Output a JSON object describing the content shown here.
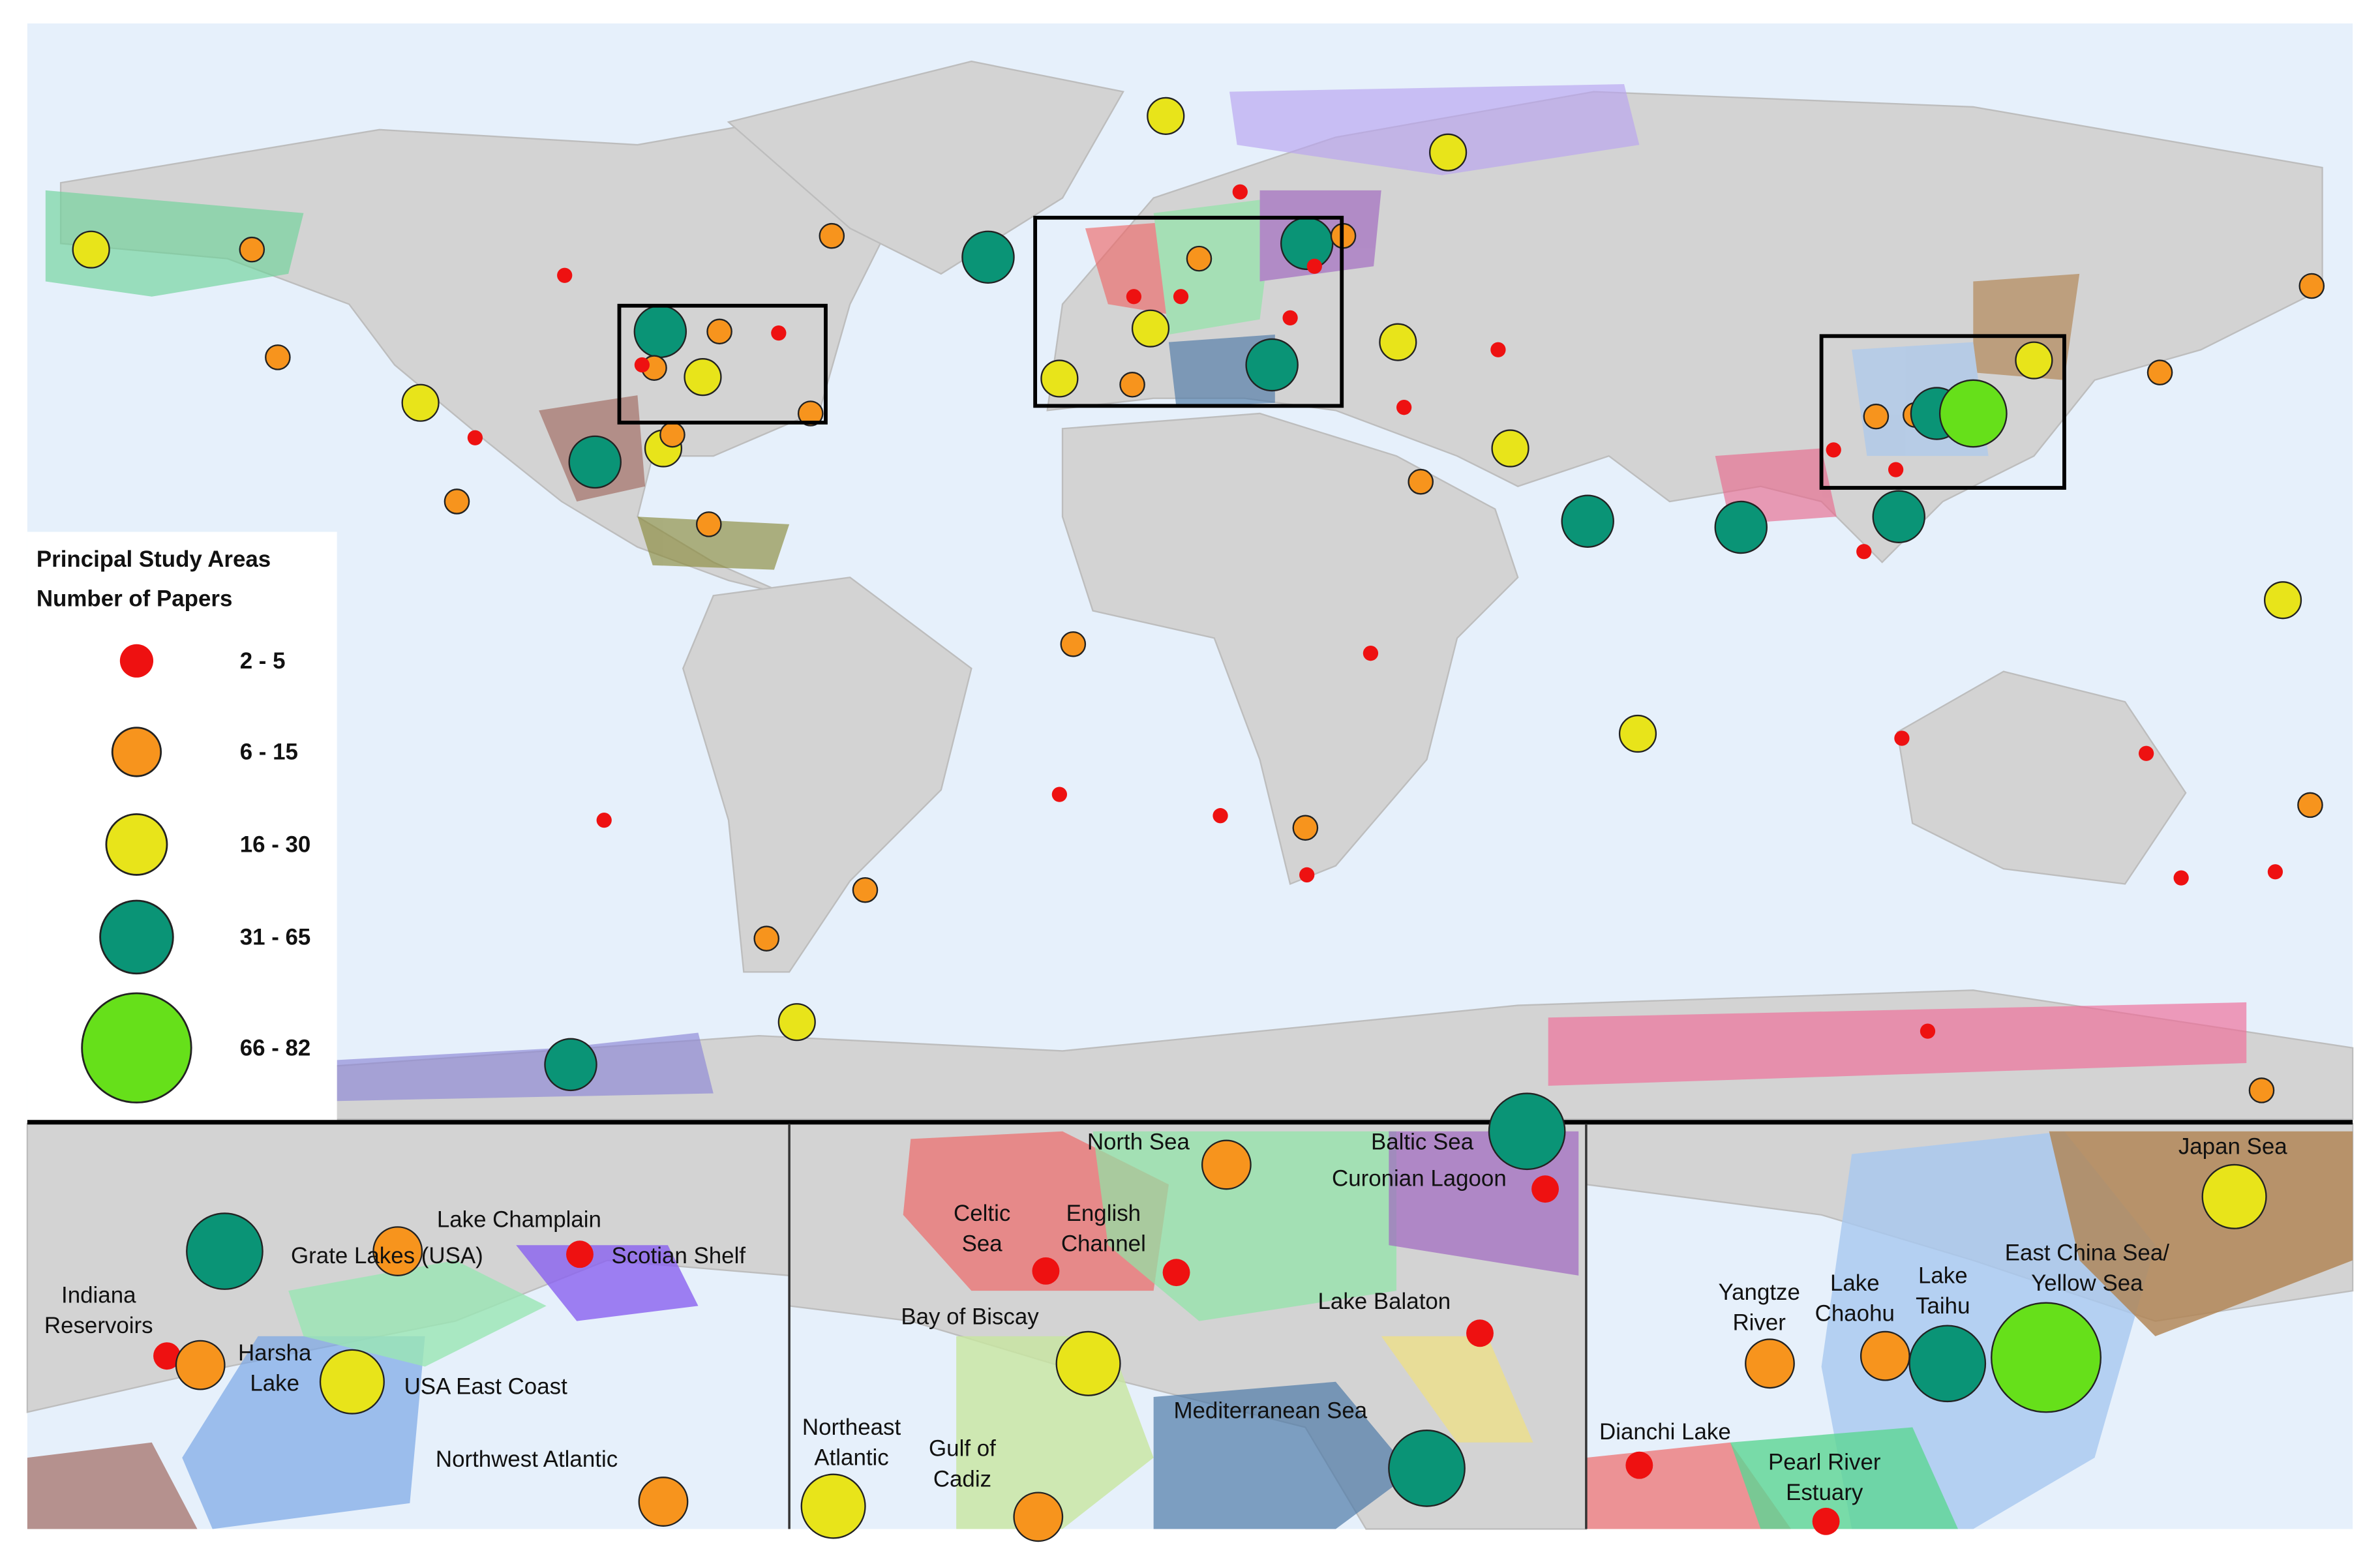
{
  "legend": {
    "title": "Principal Study Areas",
    "subtitle": "Number of Papers",
    "classes": [
      "2 - 5",
      "6 - 15",
      "16 - 30",
      "31 - 65",
      "66 - 82"
    ]
  },
  "insets": [
    {
      "labels": [
        {
          "lines": [
            "Lake Champlain"
          ]
        },
        {
          "lines": [
            "Grate Lakes (USA)"
          ]
        },
        {
          "lines": [
            "Scotian Shelf"
          ]
        },
        {
          "lines": [
            "Indiana",
            "Reservoirs"
          ]
        },
        {
          "lines": [
            "Harsha",
            "Lake"
          ]
        },
        {
          "lines": [
            "USA East Coast"
          ]
        },
        {
          "lines": [
            "Northwest Atlantic"
          ]
        }
      ]
    },
    {
      "labels": [
        {
          "lines": [
            "North Sea"
          ]
        },
        {
          "lines": [
            "Baltic Sea"
          ]
        },
        {
          "lines": [
            "Curonian Lagoon"
          ]
        },
        {
          "lines": [
            "Celtic",
            "Sea"
          ]
        },
        {
          "lines": [
            "English",
            "Channel"
          ]
        },
        {
          "lines": [
            "Lake Balaton"
          ]
        },
        {
          "lines": [
            "Bay of Biscay"
          ]
        },
        {
          "lines": [
            "Mediterranean Sea"
          ]
        },
        {
          "lines": [
            "Northeast",
            "Atlantic"
          ]
        },
        {
          "lines": [
            "Gulf of",
            "Cadiz"
          ]
        }
      ]
    },
    {
      "labels": [
        {
          "lines": [
            "Japan Sea"
          ]
        },
        {
          "lines": [
            "East China Sea/",
            "Yellow Sea"
          ]
        },
        {
          "lines": [
            "Yangtze",
            "River"
          ]
        },
        {
          "lines": [
            "Lake",
            "Chaohu"
          ]
        },
        {
          "lines": [
            "Lake",
            "Taihu"
          ]
        },
        {
          "lines": [
            "Dianchi Lake"
          ]
        },
        {
          "lines": [
            "Pearl River",
            "Estuary"
          ]
        }
      ]
    }
  ]
}
